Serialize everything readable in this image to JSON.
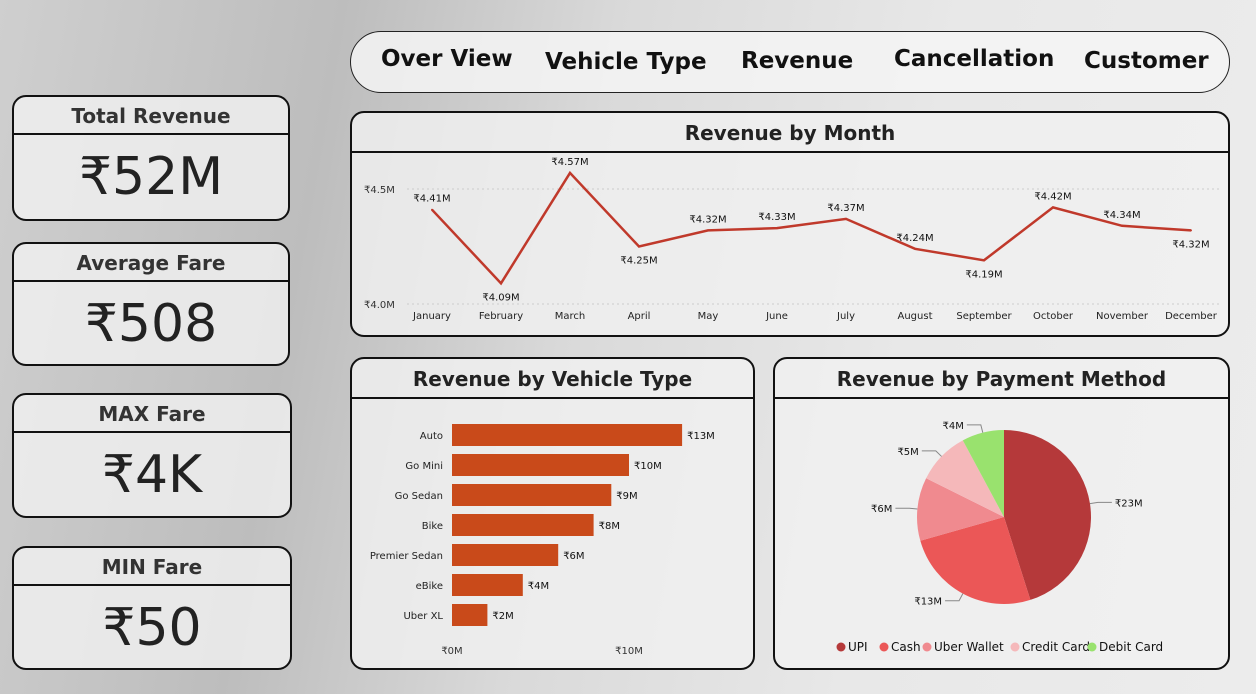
{
  "kpis": [
    {
      "label": "Total Revenue",
      "value": "₹52M"
    },
    {
      "label": "Average Fare",
      "value": "₹508"
    },
    {
      "label": "MAX Fare",
      "value": "₹4K"
    },
    {
      "label": "MIN Fare",
      "value": "₹50"
    }
  ],
  "nav": [
    "Over View",
    "Vehicle Type",
    "Revenue",
    "Cancellation",
    "Customer"
  ],
  "colors": {
    "line": "#c0392b",
    "bar": "#c94a1a",
    "pie": [
      "#b5393a",
      "#eb5757",
      "#f08a8f",
      "#f5b8ba",
      "#99e26e"
    ]
  },
  "chart_data": [
    {
      "type": "line",
      "title": "Revenue by Month",
      "categories": [
        "January",
        "February",
        "March",
        "April",
        "May",
        "June",
        "July",
        "August",
        "September",
        "October",
        "November",
        "December"
      ],
      "values": [
        4.41,
        4.09,
        4.57,
        4.25,
        4.32,
        4.33,
        4.37,
        4.24,
        4.19,
        4.42,
        4.34,
        4.32
      ],
      "data_labels": [
        "₹4.41M",
        "₹4.09M",
        "₹4.57M",
        "₹4.25M",
        "₹4.32M",
        "₹4.33M",
        "₹4.37M",
        "₹4.24M",
        "₹4.19M",
        "₹4.42M",
        "₹4.34M",
        "₹4.32M"
      ],
      "yticks": [
        "₹4.0M",
        "₹4.5M"
      ],
      "ylim": [
        4.0,
        4.5
      ],
      "unit": "₹M",
      "grid": true
    },
    {
      "type": "bar",
      "orientation": "horizontal",
      "title": "Revenue by Vehicle Type",
      "categories": [
        "Auto",
        "Go Mini",
        "Go Sedan",
        "Bike",
        "Premier Sedan",
        "eBike",
        "Uber XL"
      ],
      "values": [
        13,
        10,
        9,
        8,
        6,
        4,
        2
      ],
      "data_labels": [
        "₹13M",
        "₹10M",
        "₹9M",
        "₹8M",
        "₹6M",
        "₹4M",
        "₹2M"
      ],
      "xticks": [
        "₹0M",
        "₹10M"
      ],
      "xtick_values": [
        0,
        10
      ],
      "unit": "₹M"
    },
    {
      "type": "pie",
      "title": "Revenue by Payment Method",
      "categories": [
        "UPI",
        "Cash",
        "Uber Wallet",
        "Credit Card",
        "Debit Card"
      ],
      "values": [
        23,
        13,
        6,
        5,
        4
      ],
      "data_labels": [
        "₹23M",
        "₹13M",
        "₹6M",
        "₹5M",
        "₹4M"
      ],
      "legend": "bottom",
      "unit": "₹M"
    }
  ]
}
